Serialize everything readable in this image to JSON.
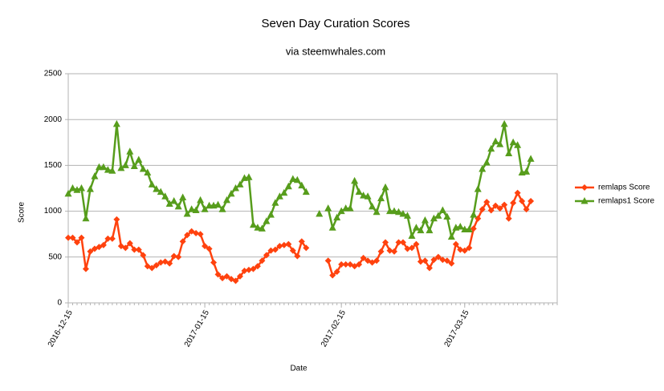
{
  "chart_data": {
    "type": "line",
    "title": "Seven Day Curation Scores",
    "subtitle": "via steemwhales.com",
    "x_label": "Date",
    "y_label": "Score",
    "x": [
      "2016-12-15",
      "2016-12-16",
      "2016-12-17",
      "2016-12-18",
      "2016-12-19",
      "2016-12-20",
      "2016-12-21",
      "2016-12-22",
      "2016-12-23",
      "2016-12-24",
      "2016-12-25",
      "2016-12-26",
      "2016-12-27",
      "2016-12-28",
      "2016-12-29",
      "2016-12-30",
      "2016-12-31",
      "2017-01-01",
      "2017-01-02",
      "2017-01-03",
      "2017-01-04",
      "2017-01-05",
      "2017-01-06",
      "2017-01-07",
      "2017-01-08",
      "2017-01-09",
      "2017-01-10",
      "2017-01-11",
      "2017-01-12",
      "2017-01-13",
      "2017-01-14",
      "2017-01-15",
      "2017-01-16",
      "2017-01-17",
      "2017-01-18",
      "2017-01-19",
      "2017-01-20",
      "2017-01-21",
      "2017-01-22",
      "2017-01-23",
      "2017-01-24",
      "2017-01-25",
      "2017-01-26",
      "2017-01-27",
      "2017-01-28",
      "2017-01-29",
      "2017-01-30",
      "2017-01-31",
      "2017-02-01",
      "2017-02-02",
      "2017-02-03",
      "2017-02-04",
      "2017-02-05",
      "2017-02-06",
      "2017-02-07",
      "2017-02-08",
      "2017-02-09",
      "2017-02-10",
      "2017-02-11",
      "2017-02-12",
      "2017-02-13",
      "2017-02-14",
      "2017-02-15",
      "2017-02-16",
      "2017-02-17",
      "2017-02-18",
      "2017-02-19",
      "2017-02-20",
      "2017-02-21",
      "2017-02-22",
      "2017-02-23",
      "2017-02-24",
      "2017-02-25",
      "2017-02-26",
      "2017-02-27",
      "2017-02-28",
      "2017-03-01",
      "2017-03-02",
      "2017-03-03",
      "2017-03-04",
      "2017-03-05",
      "2017-03-06",
      "2017-03-07",
      "2017-03-08",
      "2017-03-09",
      "2017-03-10",
      "2017-03-11",
      "2017-03-12",
      "2017-03-13",
      "2017-03-14",
      "2017-03-15",
      "2017-03-16",
      "2017-03-17",
      "2017-03-18",
      "2017-03-19",
      "2017-03-20",
      "2017-03-21",
      "2017-03-22",
      "2017-03-23",
      "2017-03-24",
      "2017-03-25",
      "2017-03-26",
      "2017-03-27",
      "2017-03-28",
      "2017-03-29",
      "2017-03-30"
    ],
    "xticks": [
      "2016-12-15",
      "2017-01-15",
      "2017-02-15",
      "2017-03-15"
    ],
    "series": [
      {
        "name": "remlaps Score",
        "color": "#ff420e",
        "marker": "diamond",
        "values": [
          710,
          710,
          660,
          710,
          370,
          560,
          590,
          610,
          630,
          700,
          700,
          910,
          620,
          600,
          650,
          580,
          580,
          520,
          400,
          380,
          410,
          440,
          450,
          430,
          510,
          500,
          670,
          740,
          780,
          760,
          750,
          620,
          590,
          440,
          310,
          270,
          290,
          260,
          240,
          290,
          350,
          360,
          370,
          400,
          460,
          520,
          570,
          580,
          620,
          630,
          640,
          570,
          510,
          670,
          600,
          null,
          null,
          null,
          null,
          460,
          300,
          340,
          420,
          420,
          420,
          400,
          420,
          490,
          460,
          440,
          460,
          560,
          660,
          570,
          560,
          660,
          660,
          590,
          600,
          640,
          450,
          460,
          380,
          470,
          500,
          470,
          460,
          430,
          640,
          580,
          570,
          600,
          810,
          920,
          1020,
          1100,
          1010,
          1060,
          1030,
          1070,
          920,
          1090,
          1200,
          1110,
          1020,
          1110
        ]
      },
      {
        "name": "remlaps1 Score",
        "color": "#579d1c",
        "marker": "triangle",
        "values": [
          1190,
          1250,
          1230,
          1250,
          920,
          1240,
          1380,
          1480,
          1480,
          1450,
          1440,
          1950,
          1470,
          1500,
          1650,
          1490,
          1560,
          1460,
          1420,
          1290,
          1240,
          1210,
          1160,
          1080,
          1110,
          1050,
          1150,
          970,
          1020,
          1010,
          1120,
          1020,
          1060,
          1060,
          1070,
          1020,
          1120,
          1190,
          1250,
          1290,
          1360,
          1370,
          850,
          820,
          810,
          890,
          960,
          1090,
          1160,
          1200,
          1270,
          1350,
          1340,
          1280,
          1210,
          null,
          null,
          970,
          null,
          1030,
          820,
          930,
          1000,
          1030,
          1030,
          1330,
          1210,
          1170,
          1160,
          1050,
          990,
          1140,
          1260,
          1000,
          1000,
          990,
          970,
          950,
          730,
          820,
          790,
          900,
          790,
          920,
          950,
          1010,
          940,
          720,
          820,
          830,
          800,
          800,
          960,
          1240,
          1460,
          1530,
          1680,
          1760,
          1730,
          1950,
          1630,
          1750,
          1720,
          1420,
          1430,
          1570
        ]
      }
    ],
    "ylim": [
      0,
      2500
    ],
    "yticks": [
      0,
      500,
      1000,
      1500,
      2000,
      2500
    ],
    "grid": true,
    "legend": "right"
  }
}
